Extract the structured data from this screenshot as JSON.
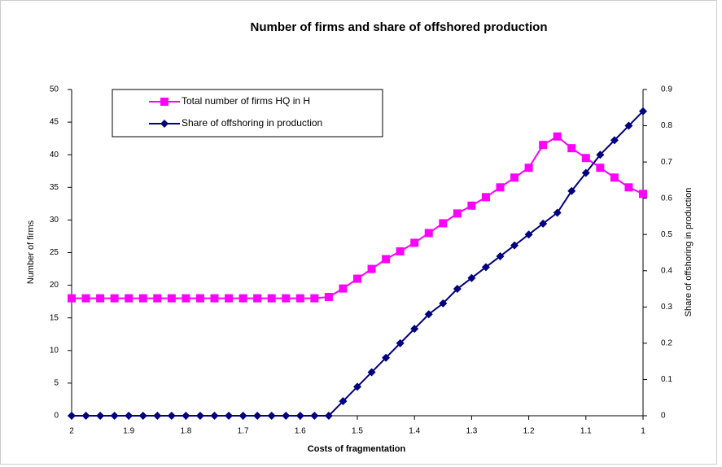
{
  "chart_data": {
    "type": "line",
    "title": "Number of firms and share of offshored production",
    "x_label": "Costs of fragmentation",
    "y_label": "Number of firms",
    "y2_label": "Share of offshoring in production",
    "x": [
      2,
      1.975,
      1.95,
      1.925,
      1.9,
      1.875,
      1.85,
      1.825,
      1.8,
      1.775,
      1.75,
      1.725,
      1.7,
      1.675,
      1.65,
      1.625,
      1.6,
      1.575,
      1.55,
      1.525,
      1.5,
      1.475,
      1.45,
      1.425,
      1.4,
      1.375,
      1.35,
      1.325,
      1.3,
      1.275,
      1.25,
      1.225,
      1.2,
      1.175,
      1.15,
      1.125,
      1.1,
      1.075,
      1.05,
      1.025,
      1
    ],
    "series": [
      {
        "name": "Total number of firms HQ in H",
        "color": "#ff00ff",
        "marker": "square",
        "values": [
          18,
          18,
          18,
          18,
          18,
          18,
          18,
          18,
          18,
          18,
          18,
          18,
          18,
          18,
          18,
          18,
          18,
          18,
          18.2,
          19.5,
          21,
          22.5,
          24,
          25.2,
          26.5,
          28,
          29.5,
          31,
          32.2,
          33.5,
          35,
          36.5,
          38,
          41.5,
          42.8,
          41,
          39.5,
          38,
          36.5,
          35,
          34
        ]
      },
      {
        "name": "Share of offshoring in production",
        "color": "#000080",
        "marker": "diamond",
        "axis": "y2",
        "values": [
          0,
          0,
          0,
          0,
          0,
          0,
          0,
          0,
          0,
          0,
          0,
          0,
          0,
          0,
          0,
          0,
          0,
          0,
          0,
          0.04,
          0.08,
          0.12,
          0.16,
          0.2,
          0.24,
          0.28,
          0.31,
          0.35,
          0.38,
          0.41,
          0.44,
          0.47,
          0.5,
          0.53,
          0.56,
          0.62,
          0.67,
          0.72,
          0.76,
          0.8,
          0.84
        ]
      }
    ],
    "xlim": [
      2,
      1
    ],
    "xticks": [
      2,
      1.9,
      1.8,
      1.7,
      1.6,
      1.5,
      1.4,
      1.3,
      1.2,
      1.1,
      1
    ],
    "ylim": [
      0,
      50
    ],
    "yticks": [
      0,
      5,
      10,
      15,
      20,
      25,
      30,
      35,
      40,
      45,
      50
    ],
    "y2lim": [
      0,
      0.9
    ],
    "y2ticks": [
      0,
      0.1,
      0.2,
      0.3,
      0.4,
      0.5,
      0.6,
      0.7,
      0.8,
      0.9
    ],
    "legend": "top-left"
  }
}
